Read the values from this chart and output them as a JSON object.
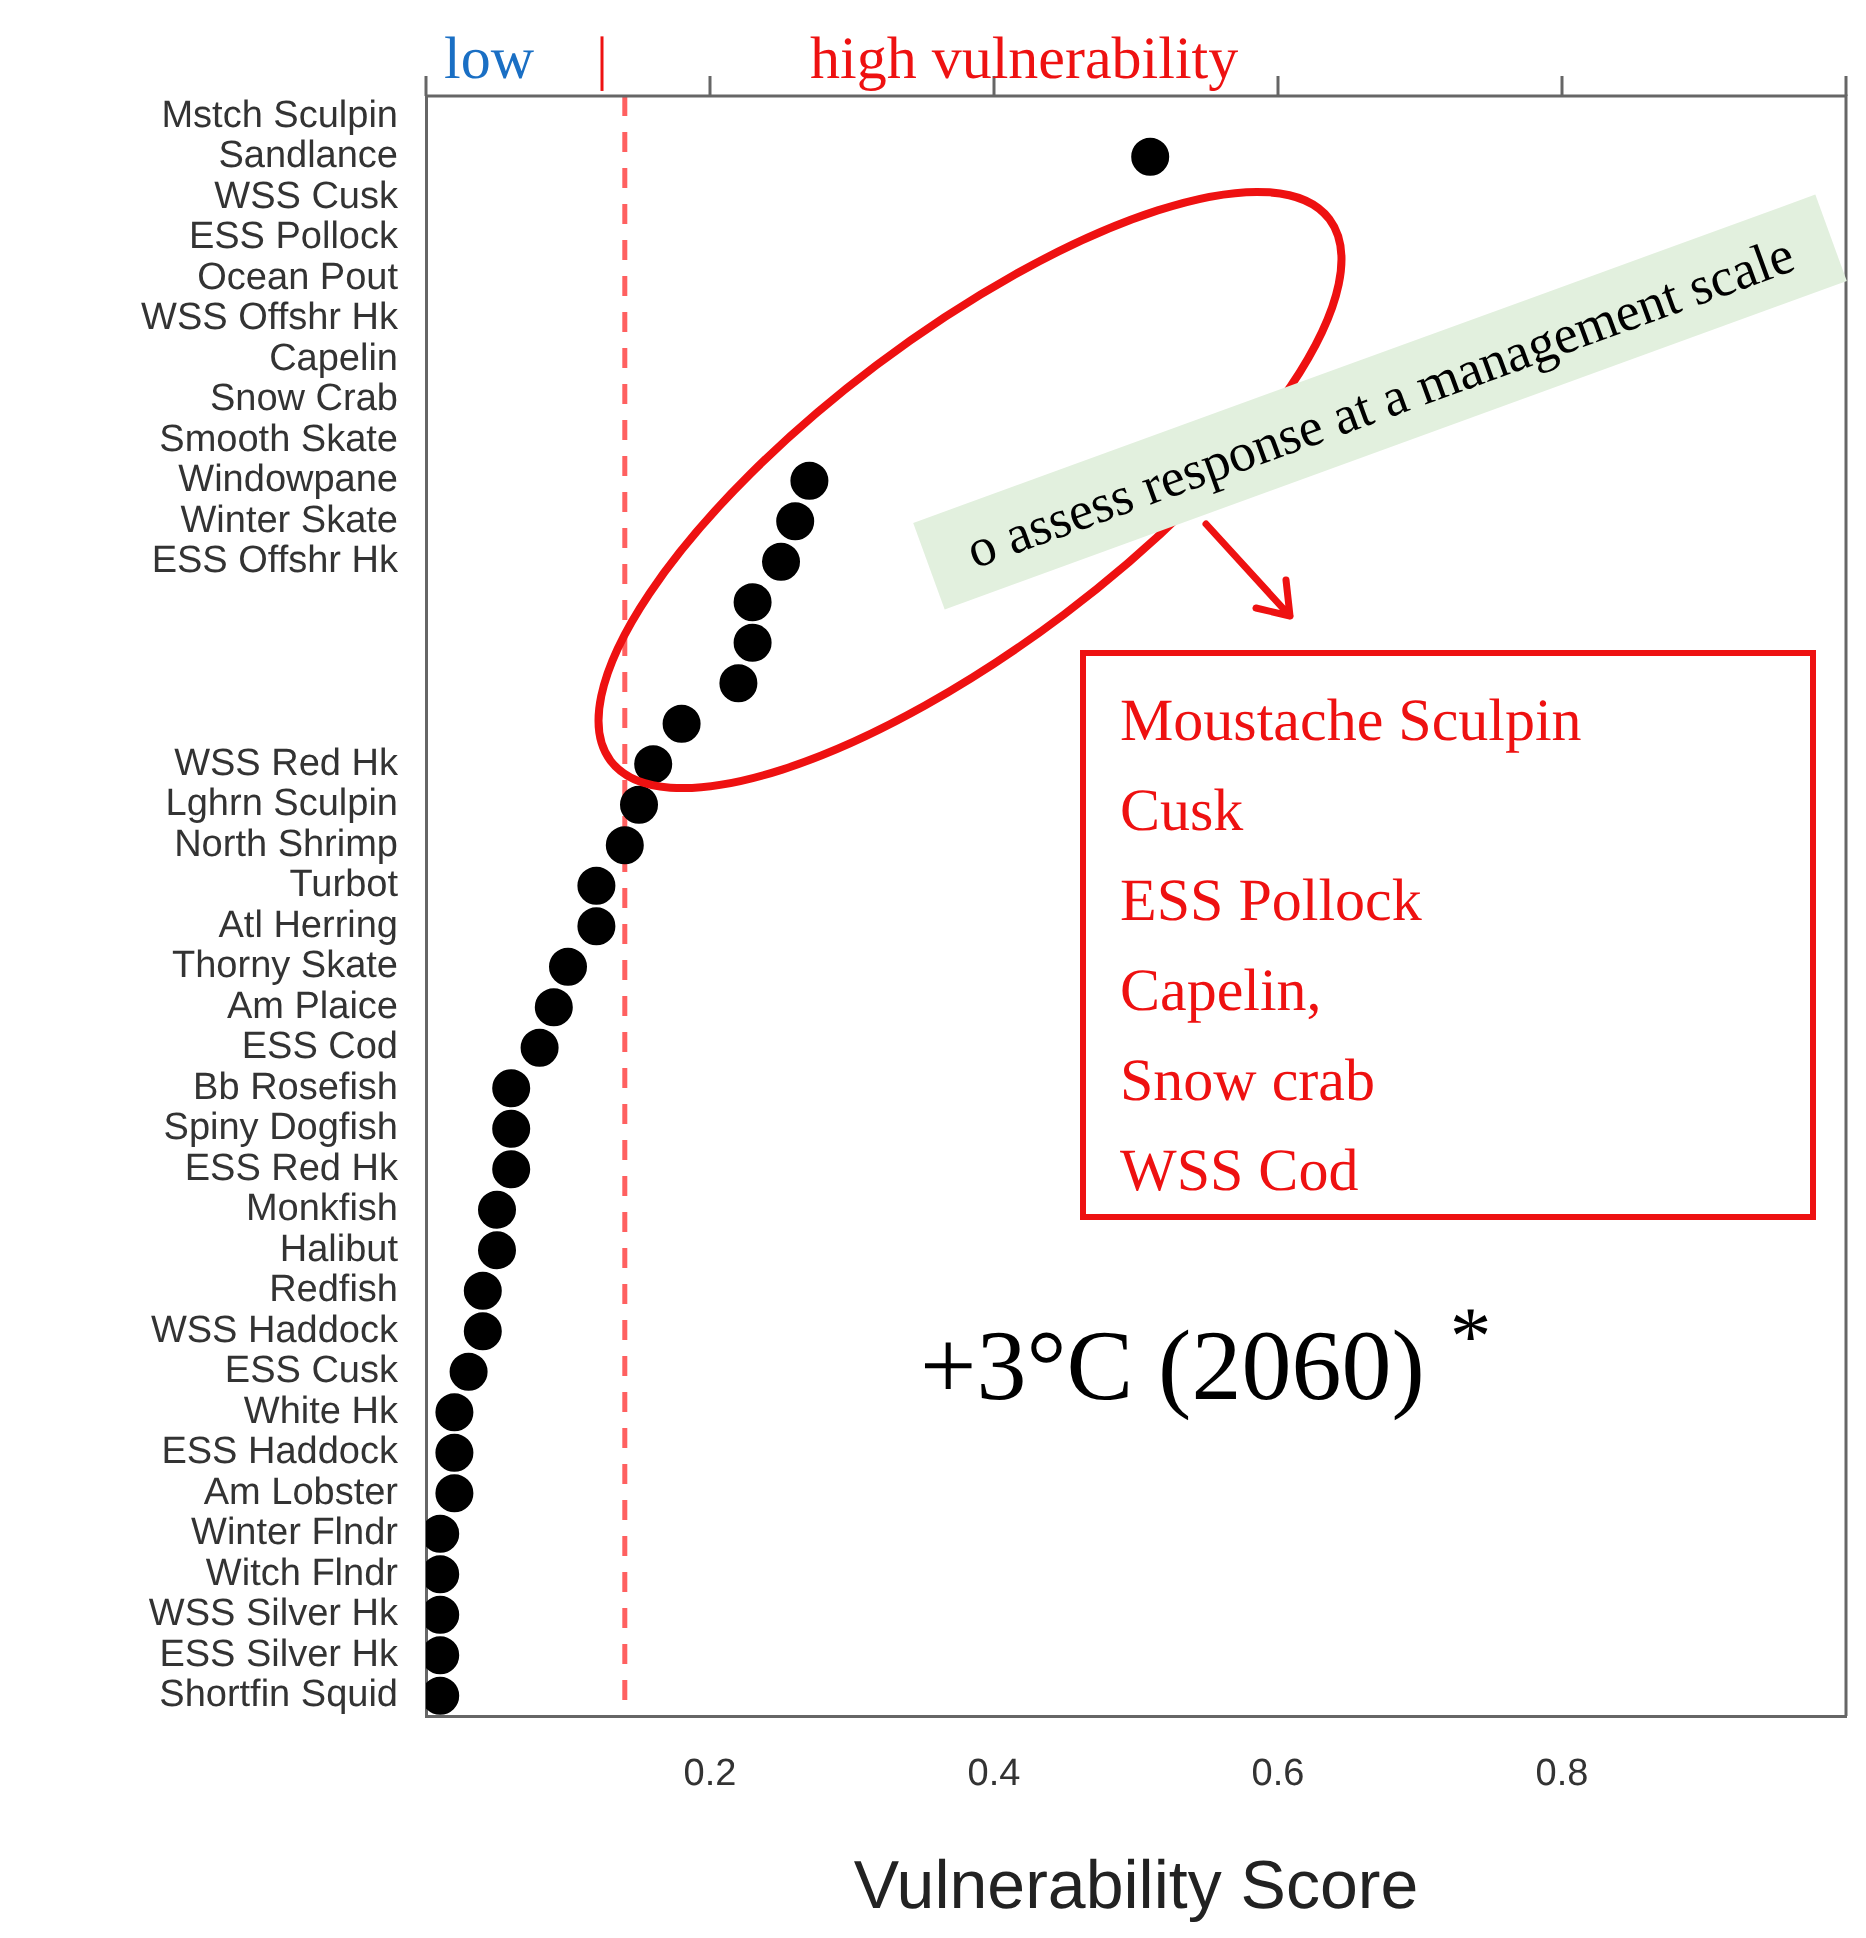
{
  "chart_data": {
    "type": "scatter",
    "xlabel": "Vulnerability Score",
    "categories": [
      "Mstch Sculpin",
      "Sandlance",
      "WSS Cusk",
      "ESS Pollock",
      "Ocean Pout",
      "WSS Offshr Hk",
      "Capelin",
      "Snow Crab",
      "Smooth Skate",
      "Windowpane",
      "Winter Skate",
      "ESS Offshr Hk",
      null,
      null,
      null,
      null,
      "WSS Red Hk",
      "Lghrn Sculpin",
      "North Shrimp",
      "Turbot",
      "Atl Herring",
      "Thorny Skate",
      "Am Plaice",
      "ESS Cod",
      "Bb Rosefish",
      "Spiny Dogfish",
      "ESS Red Hk",
      "Monkfish",
      "Halibut",
      "Redfish",
      "WSS Haddock",
      "ESS Cusk",
      "White Hk",
      "ESS Haddock",
      "Am Lobster",
      "Winter Flndr",
      "Witch Flndr",
      "WSS Silver Hk",
      "ESS Silver Hk",
      "Shortfin Squid"
    ],
    "series": [
      {
        "color": "#000000",
        "values": [
          null,
          0.51,
          null,
          null,
          null,
          null,
          null,
          null,
          null,
          0.27,
          0.26,
          0.25,
          0.23,
          0.23,
          0.22,
          0.18,
          0.16,
          0.15,
          0.14,
          0.12,
          0.12,
          0.1,
          0.09,
          0.08,
          0.06,
          0.06,
          0.06,
          0.05,
          0.05,
          0.04,
          0.04,
          0.03,
          0.02,
          0.02,
          0.02,
          0.01,
          0.01,
          0.01,
          0.01,
          0.01
        ]
      }
    ],
    "xlim": [
      0,
      1
    ],
    "xticks": [
      {
        "value": 0,
        "label": null
      },
      0.2,
      0.4,
      0.6,
      0.8,
      {
        "value": 1,
        "label": null
      }
    ],
    "ref_lines": [
      {
        "axis": "x",
        "value": 0.14,
        "color": "#ff6060",
        "line_style": "dashed"
      }
    ],
    "orientation": "horizontal",
    "marker": "circle",
    "grid": false,
    "legend": false,
    "annotations": [
      "low",
      "|",
      "high vulnerability",
      "Moustache Sculpin",
      "Cusk",
      "ESS Pollock",
      "Capelin,",
      "Snow crab",
      "WSS Cod",
      "+3°C (2060) $^{*}$",
      "o assess response at a management scale"
    ]
  }
}
